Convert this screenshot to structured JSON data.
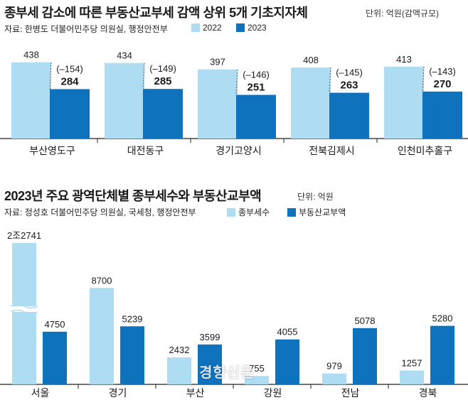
{
  "colors": {
    "light": "#aedcf3",
    "dark": "#0e72bd",
    "text": "#1a1a1a"
  },
  "chart_data": [
    {
      "type": "bar",
      "title": "종부세 감소에 따른 부동산교부세 감액 상위 5개 기초지자체",
      "unit": "단위: 억원(감액규모)",
      "source": "자료: 한병도 더불어민주당 의원실, 행정안전부",
      "categories": [
        "부산영도구",
        "대전동구",
        "경기고양시",
        "전북김제시",
        "인천미추홀구"
      ],
      "series": [
        {
          "name": "2022",
          "values": [
            438,
            434,
            397,
            408,
            413
          ]
        },
        {
          "name": "2023",
          "values": [
            284,
            285,
            251,
            263,
            270
          ]
        }
      ],
      "annotations": [
        "(–154)",
        "(–149)",
        "(–146)",
        "(–145)",
        "(–143)"
      ],
      "ylim": [
        0,
        500
      ]
    },
    {
      "type": "bar",
      "title": "2023년 주요 광역단체별 종부세수와 부동산교부액",
      "unit": "단위: 억원",
      "source": "자료: 정성호 더불어민주당 의원실, 국세청, 행정안전부",
      "categories": [
        "서울",
        "경기",
        "부산",
        "강원",
        "전남",
        "경북"
      ],
      "series": [
        {
          "name": "종부세수",
          "values": [
            22741,
            8700,
            2432,
            755,
            979,
            1257
          ]
        },
        {
          "name": "부동산교부액",
          "values": [
            4750,
            5239,
            3599,
            4055,
            5078,
            5280
          ]
        }
      ],
      "value_labels": [
        [
          "2조2741",
          "8700",
          "2432",
          "755",
          "979",
          "1257"
        ],
        [
          "4750",
          "5239",
          "3599",
          "4055",
          "5078",
          "5280"
        ]
      ],
      "axis_break": "서울 종부세수 막대 축 생략",
      "ylim": [
        0,
        9500
      ]
    }
  ],
  "watermark": "경향신문"
}
